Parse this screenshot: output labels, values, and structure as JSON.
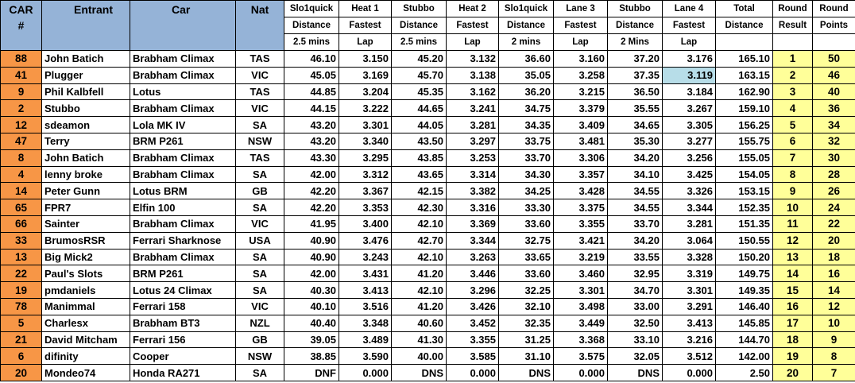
{
  "headers": {
    "car_line1": "CAR",
    "car_line2": "#",
    "entrant": "Entrant",
    "car": "Car",
    "nat": "Nat",
    "cols": [
      [
        "Slo1quick",
        "Distance",
        "2.5 mins"
      ],
      [
        "Heat 1",
        "Fastest",
        "Lap"
      ],
      [
        "Stubbo",
        "Distance",
        "2.5 mins"
      ],
      [
        "Heat 2",
        "Fastest",
        "Lap"
      ],
      [
        "Slo1quick",
        "Distance",
        "2 mins"
      ],
      [
        "Lane 3",
        "Fastest",
        "Lap"
      ],
      [
        "Stubbo",
        "Distance",
        "2 Mins"
      ],
      [
        "Lane 4",
        "Fastest",
        "Lap"
      ],
      [
        "Total",
        "Distance",
        ""
      ],
      [
        "Round",
        "Result",
        ""
      ],
      [
        "Round",
        "Points",
        ""
      ]
    ]
  },
  "rows": [
    [
      "88",
      "John Batich",
      "Brabham Climax",
      "TAS",
      "46.10",
      "3.150",
      "45.20",
      "3.132",
      "36.60",
      "3.160",
      "37.20",
      "3.176",
      "165.10",
      "1",
      "50"
    ],
    [
      "41",
      "Plugger",
      "Brabham Climax",
      "VIC",
      "45.05",
      "3.169",
      "45.70",
      "3.138",
      "35.05",
      "3.258",
      "37.35",
      "3.119",
      "163.15",
      "2",
      "46"
    ],
    [
      "9",
      "Phil Kalbfell",
      "Lotus",
      "TAS",
      "44.85",
      "3.204",
      "45.35",
      "3.162",
      "36.20",
      "3.215",
      "36.50",
      "3.184",
      "162.90",
      "3",
      "40"
    ],
    [
      "2",
      "Stubbo",
      "Brabham Climax",
      "VIC",
      "44.15",
      "3.222",
      "44.65",
      "3.241",
      "34.75",
      "3.379",
      "35.55",
      "3.267",
      "159.10",
      "4",
      "36"
    ],
    [
      "12",
      "sdeamon",
      "Lola MK IV",
      "SA",
      "43.20",
      "3.301",
      "44.05",
      "3.281",
      "34.35",
      "3.409",
      "34.65",
      "3.305",
      "156.25",
      "5",
      "34"
    ],
    [
      "47",
      "Terry",
      "BRM P261",
      "NSW",
      "43.20",
      "3.340",
      "43.50",
      "3.297",
      "33.75",
      "3.481",
      "35.30",
      "3.277",
      "155.75",
      "6",
      "32"
    ],
    [
      "8",
      "John Batich",
      "Brabham Climax",
      "TAS",
      "43.30",
      "3.295",
      "43.85",
      "3.253",
      "33.70",
      "3.306",
      "34.20",
      "3.256",
      "155.05",
      "7",
      "30"
    ],
    [
      "4",
      "lenny broke",
      "Brabham Climax",
      "SA",
      "42.00",
      "3.312",
      "43.65",
      "3.314",
      "34.30",
      "3.357",
      "34.10",
      "3.425",
      "154.05",
      "8",
      "28"
    ],
    [
      "14",
      "Peter Gunn",
      "Lotus BRM",
      "GB",
      "42.20",
      "3.367",
      "42.15",
      "3.382",
      "34.25",
      "3.428",
      "34.55",
      "3.326",
      "153.15",
      "9",
      "26"
    ],
    [
      "65",
      "FPR7",
      "Elfin 100",
      "SA",
      "42.20",
      "3.353",
      "42.30",
      "3.316",
      "33.30",
      "3.375",
      "34.55",
      "3.344",
      "152.35",
      "10",
      "24"
    ],
    [
      "66",
      "Sainter",
      "Brabham Climax",
      "VIC",
      "41.95",
      "3.400",
      "42.10",
      "3.369",
      "33.60",
      "3.355",
      "33.70",
      "3.281",
      "151.35",
      "11",
      "22"
    ],
    [
      "33",
      "BrumosRSR",
      "Ferrari Sharknose",
      "USA",
      "40.90",
      "3.476",
      "42.70",
      "3.344",
      "32.75",
      "3.421",
      "34.20",
      "3.064",
      "150.55",
      "12",
      "20"
    ],
    [
      "13",
      "Big Mick2",
      "Brabham Climax",
      "SA",
      "40.90",
      "3.243",
      "42.10",
      "3.263",
      "33.65",
      "3.219",
      "33.55",
      "3.328",
      "150.20",
      "13",
      "18"
    ],
    [
      "22",
      "Paul's Slots",
      "BRM P261",
      "SA",
      "42.00",
      "3.431",
      "41.20",
      "3.446",
      "33.60",
      "3.460",
      "32.95",
      "3.319",
      "149.75",
      "14",
      "16"
    ],
    [
      "19",
      "pmdaniels",
      "Lotus 24 Climax",
      "SA",
      "40.30",
      "3.413",
      "42.10",
      "3.296",
      "32.25",
      "3.301",
      "34.70",
      "3.301",
      "149.35",
      "15",
      "14"
    ],
    [
      "78",
      "Manimmal",
      "Ferrari 158",
      "VIC",
      "40.10",
      "3.516",
      "41.20",
      "3.426",
      "32.10",
      "3.498",
      "33.00",
      "3.291",
      "146.40",
      "16",
      "12"
    ],
    [
      "5",
      "Charlesx",
      "Brabham BT3",
      "NZL",
      "40.40",
      "3.348",
      "40.60",
      "3.452",
      "32.35",
      "3.449",
      "32.50",
      "3.413",
      "145.85",
      "17",
      "10"
    ],
    [
      "21",
      "David Mitcham",
      "Ferrari 156",
      "GB",
      "39.05",
      "3.489",
      "41.30",
      "3.355",
      "31.25",
      "3.368",
      "33.10",
      "3.216",
      "144.70",
      "18",
      "9"
    ],
    [
      "6",
      "difinity",
      "Cooper",
      "NSW",
      "38.85",
      "3.590",
      "40.00",
      "3.585",
      "31.10",
      "3.575",
      "32.05",
      "3.512",
      "142.00",
      "19",
      "8"
    ],
    [
      "20",
      "Mondeo74",
      "Honda RA271",
      "SA",
      "DNF",
      "0.000",
      "DNS",
      "0.000",
      "DNS",
      "0.000",
      "DNS",
      "0.000",
      "2.50",
      "20",
      "7"
    ]
  ],
  "highlight_color": "#b7dde8",
  "header_color": "#95b3d7",
  "car_number_color": "#f79646",
  "round_color": "#ffff99"
}
